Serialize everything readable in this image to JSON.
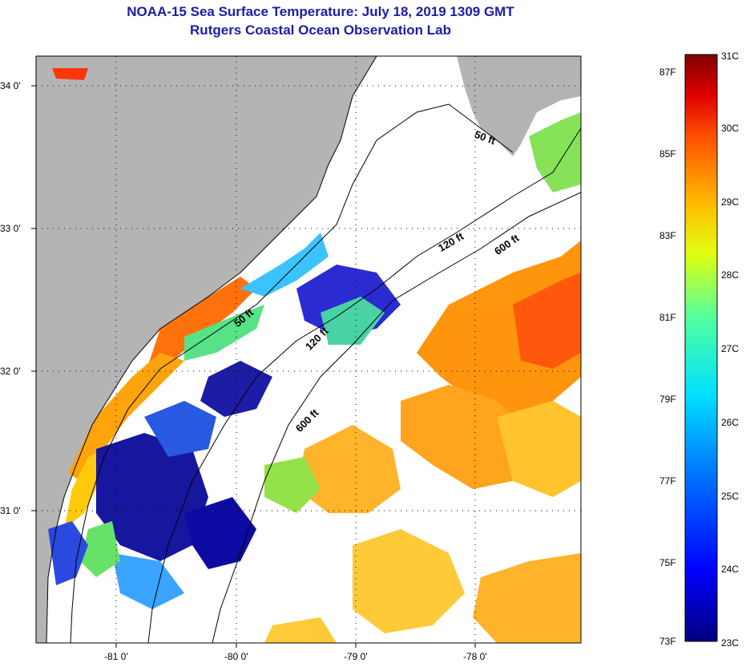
{
  "title": {
    "line1": "NOAA-15 Sea Surface Temperature:  July 18, 2019 1309 GMT",
    "line2": "Rutgers Coastal Ocean Observation Lab"
  },
  "axes": {
    "lon_labels": [
      "-81 0'",
      "-80 0'",
      "-79 0'",
      "-78 0'"
    ],
    "lat_labels": [
      "34 0'",
      "33 0'",
      "32 0'",
      "31 0'"
    ]
  },
  "contours": {
    "c50_a": "50 ft",
    "c50_b": "50 ft",
    "c120_a": "120 ft",
    "c120_b": "120 ft",
    "c600_a": "600 ft",
    "c600_b": "600 ft"
  },
  "colorbar": {
    "fahrenheit": [
      "87F",
      "85F",
      "83F",
      "81F",
      "79F",
      "77F",
      "75F",
      "73F"
    ],
    "celsius": [
      "31C",
      "30C",
      "29C",
      "28C",
      "27C",
      "26C",
      "25C",
      "24C",
      "23C"
    ]
  },
  "colors": {
    "land": "#b4b4b4",
    "no_data": "#ffffff",
    "scale_cold": "#00007f",
    "scale_mid": "#00e0e0",
    "scale_warm": "#ffd800",
    "scale_hot": "#7f0000"
  }
}
